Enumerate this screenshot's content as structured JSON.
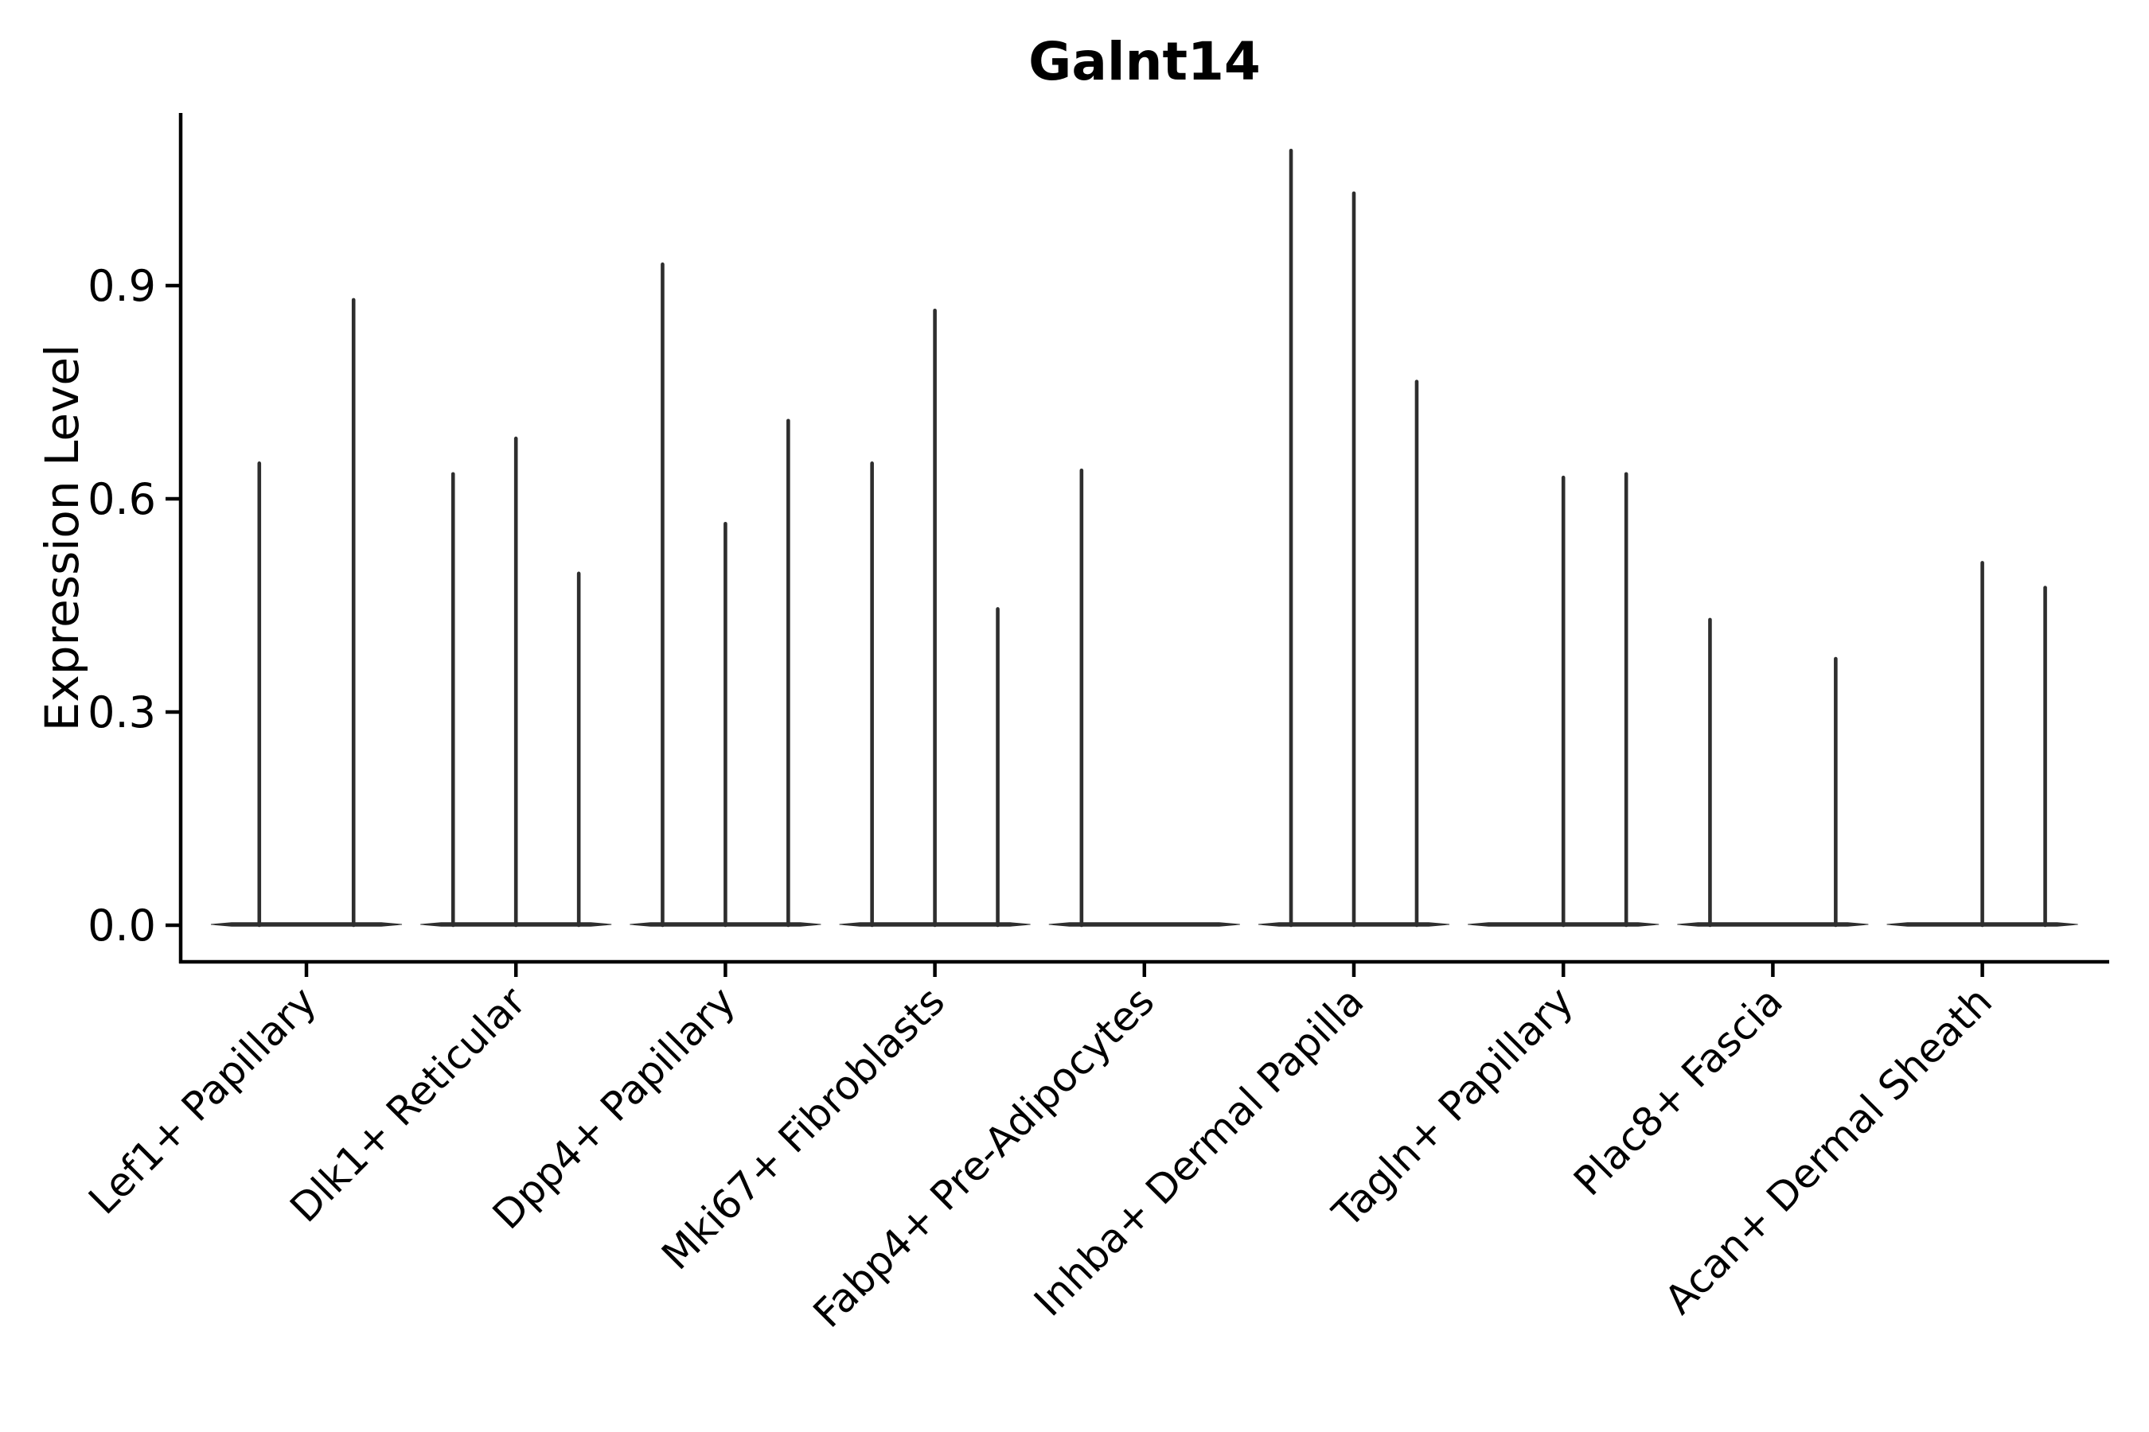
{
  "chart_data": {
    "type": "violin",
    "title": "Galnt14",
    "ylabel": "Expression Level",
    "xlabel": "",
    "yticks": [
      0.0,
      0.3,
      0.6,
      0.9
    ],
    "ytick_labels": [
      "0.0",
      "0.3",
      "0.6",
      "0.9"
    ],
    "ylim": [
      -0.05,
      1.14
    ],
    "grid": false,
    "legend": "none",
    "stroke_color": "#2e2e2e",
    "spine_color": "#000000",
    "categories": [
      "Lef1+ Papillary",
      "Dlk1+ Reticular",
      "Dpp4+ Papillary",
      "Mki67+ Fibroblasts",
      "Fabp4+ Pre-Adipocytes",
      "Inhba+ Dermal Papilla",
      "Tagln+ Papillary",
      "Plac8+ Fascia",
      "Acan+ Dermal Sheath"
    ],
    "group_halfwidth_units": 0.456,
    "note": "Each category shows up to 3 very thin violins (nearly all-zero expression): a flat base at 0 spanning the group plus thin spikes whose tops mark the maximum expression; offset is the spike position within the group in category-width units.",
    "groups": [
      {
        "label": "Lef1+ Papillary",
        "spikes": [
          {
            "offset": -0.225,
            "peak": 0.65
          },
          {
            "offset": 0.225,
            "peak": 0.88
          }
        ]
      },
      {
        "label": "Dlk1+ Reticular",
        "spikes": [
          {
            "offset": -0.3,
            "peak": 0.635
          },
          {
            "offset": 0,
            "peak": 0.685
          },
          {
            "offset": 0.3,
            "peak": 0.495
          }
        ]
      },
      {
        "label": "Dpp4+ Papillary",
        "spikes": [
          {
            "offset": -0.3,
            "peak": 0.93
          },
          {
            "offset": 0,
            "peak": 0.565
          },
          {
            "offset": 0.3,
            "peak": 0.71
          }
        ]
      },
      {
        "label": "Mki67+ Fibroblasts",
        "spikes": [
          {
            "offset": -0.3,
            "peak": 0.65
          },
          {
            "offset": 0,
            "peak": 0.865
          },
          {
            "offset": 0.3,
            "peak": 0.445
          }
        ]
      },
      {
        "label": "Fabp4+ Pre-Adipocytes",
        "spikes": [
          {
            "offset": -0.3,
            "peak": 0.64
          }
        ]
      },
      {
        "label": "Inhba+ Dermal Papilla",
        "spikes": [
          {
            "offset": -0.3,
            "peak": 1.09
          },
          {
            "offset": 0,
            "peak": 1.03
          },
          {
            "offset": 0.3,
            "peak": 0.765
          }
        ]
      },
      {
        "label": "Tagln+ Papillary",
        "spikes": [
          {
            "offset": 0,
            "peak": 0.63
          },
          {
            "offset": 0.3,
            "peak": 0.635
          }
        ]
      },
      {
        "label": "Plac8+ Fascia",
        "spikes": [
          {
            "offset": -0.3,
            "peak": 0.43
          },
          {
            "offset": 0.3,
            "peak": 0.375
          }
        ]
      },
      {
        "label": "Acan+ Dermal Sheath",
        "spikes": [
          {
            "offset": 0,
            "peak": 0.51
          },
          {
            "offset": 0.3,
            "peak": 0.475
          }
        ]
      }
    ]
  }
}
